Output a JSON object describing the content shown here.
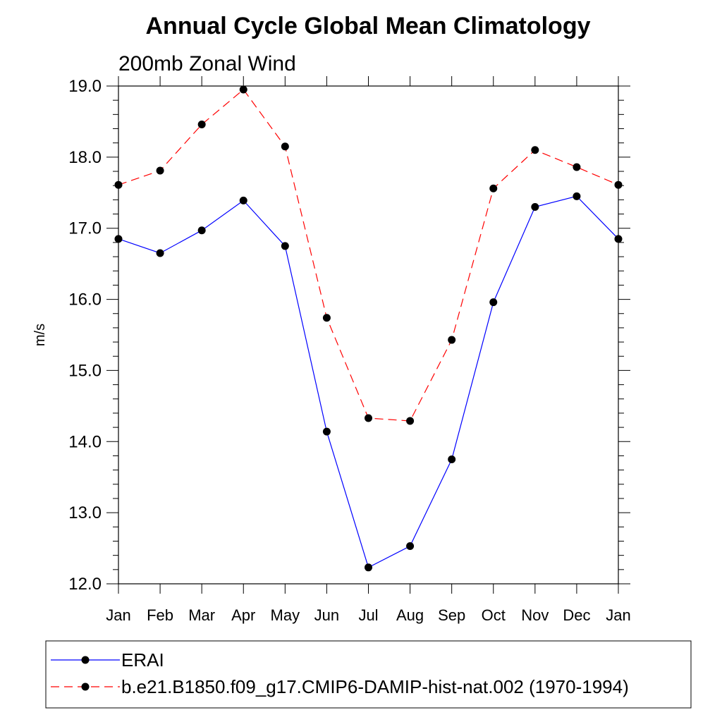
{
  "chart_data": {
    "type": "line",
    "title": "Annual Cycle Global Mean Climatology",
    "subtitle": "200mb Zonal Wind",
    "ylabel": "m/s",
    "xlabel": "",
    "categories": [
      "Jan",
      "Feb",
      "Mar",
      "Apr",
      "May",
      "Jun",
      "Jul",
      "Aug",
      "Sep",
      "Oct",
      "Nov",
      "Dec",
      "Jan"
    ],
    "ylim": [
      12.0,
      19.0
    ],
    "yticks": [
      "12.0",
      "13.0",
      "14.0",
      "15.0",
      "16.0",
      "17.0",
      "18.0",
      "19.0"
    ],
    "series": [
      {
        "name": "ERAI",
        "color": "#0000ff",
        "style": "solid",
        "values": [
          16.85,
          16.65,
          16.97,
          17.39,
          16.75,
          14.14,
          12.23,
          12.53,
          13.75,
          15.96,
          17.3,
          17.45,
          16.85
        ]
      },
      {
        "name": "b.e21.B1850.f09_g17.CMIP6-DAMIP-hist-nat.002 (1970-1994)",
        "color": "#ff0000",
        "style": "dashed",
        "values": [
          17.61,
          17.81,
          18.46,
          18.95,
          18.15,
          15.74,
          14.33,
          14.29,
          15.43,
          17.56,
          18.1,
          17.86,
          17.61
        ]
      }
    ],
    "legend_position": "bottom",
    "grid": false
  }
}
